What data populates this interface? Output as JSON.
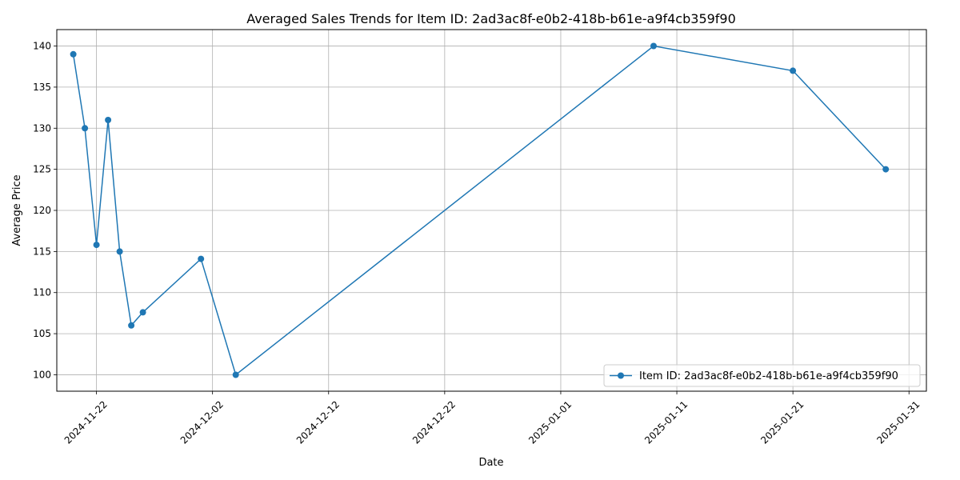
{
  "chart_data": {
    "type": "line",
    "title": "Averaged Sales Trends for Item ID: 2ad3ac8f-e0b2-418b-b61e-a9f4cb359f90",
    "xlabel": "Date",
    "ylabel": "Average Price",
    "grid": true,
    "legend_position": "lower-right",
    "x_ticks": [
      "2024-11-22",
      "2024-12-02",
      "2024-12-12",
      "2024-12-22",
      "2025-01-01",
      "2025-01-11",
      "2025-01-21",
      "2025-01-31"
    ],
    "y_ticks": [
      100,
      105,
      110,
      115,
      120,
      125,
      130,
      135,
      140
    ],
    "xlim": [
      "2024-11-18T14:00",
      "2025-02-01T12:00"
    ],
    "ylim": [
      98,
      142
    ],
    "series": [
      {
        "name": "Item ID: 2ad3ac8f-e0b2-418b-b61e-a9f4cb359f90",
        "color": "#1f77b4",
        "marker": "circle",
        "x": [
          "2024-11-20",
          "2024-11-21",
          "2024-11-22",
          "2024-11-23",
          "2024-11-24",
          "2024-11-25",
          "2024-11-26",
          "2024-12-01",
          "2024-12-04",
          "2025-01-09",
          "2025-01-21",
          "2025-01-29"
        ],
        "y": [
          139,
          130,
          115.8,
          131,
          115,
          106,
          107.6,
          114.1,
          100,
          140,
          137,
          125
        ]
      }
    ]
  }
}
